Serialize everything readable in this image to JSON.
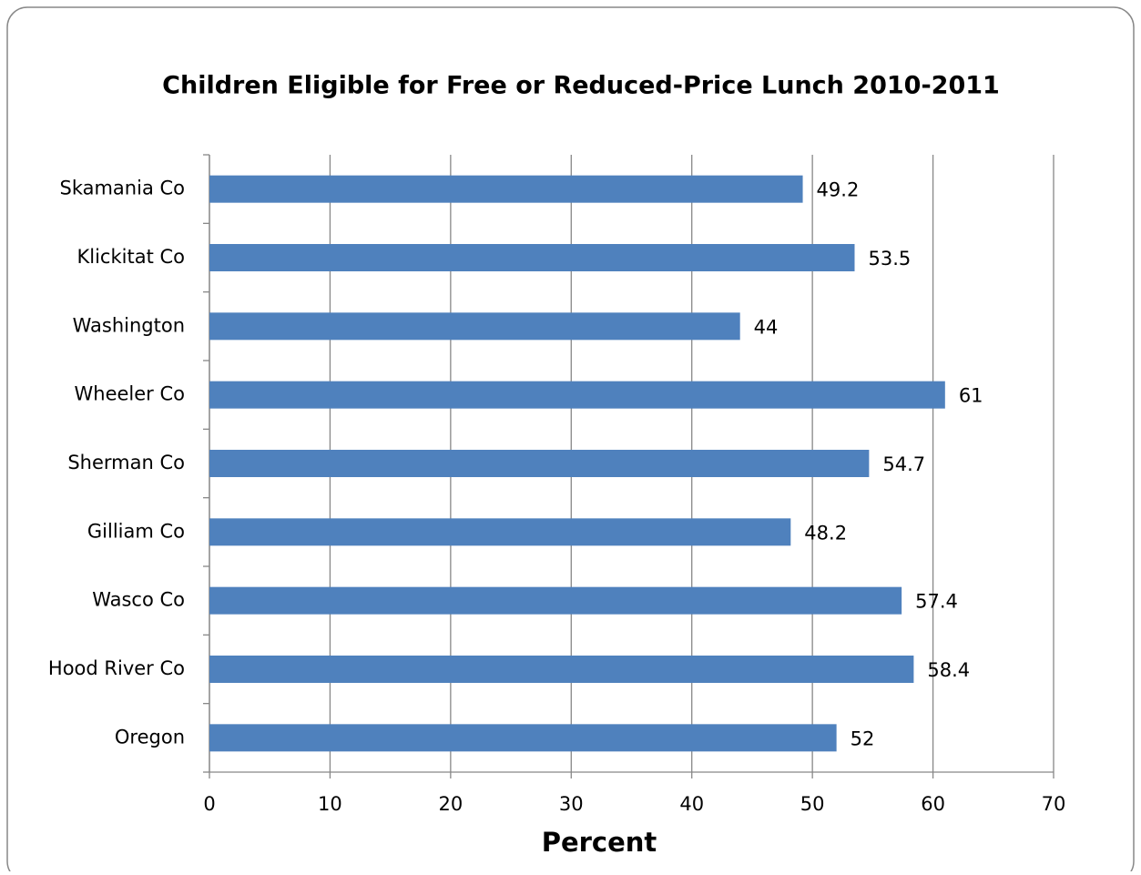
{
  "chart_data": {
    "type": "bar",
    "orientation": "horizontal",
    "title": "Children Eligible for Free or Reduced-Price Lunch 2010-2011",
    "x_label": "Percent",
    "categories": [
      "Skamania Co",
      "Klickitat Co",
      "Washington",
      "Wheeler Co",
      "Sherman Co",
      "Gilliam Co",
      "Wasco Co",
      "Hood River Co",
      "Oregon"
    ],
    "values": [
      49.2,
      53.5,
      44,
      61,
      54.7,
      48.2,
      57.4,
      58.4,
      52
    ],
    "color": "#4f81bd",
    "xlim": [
      0,
      70
    ],
    "xticks": [
      0,
      10,
      20,
      30,
      40,
      50,
      60,
      70
    ],
    "grid": true
  }
}
